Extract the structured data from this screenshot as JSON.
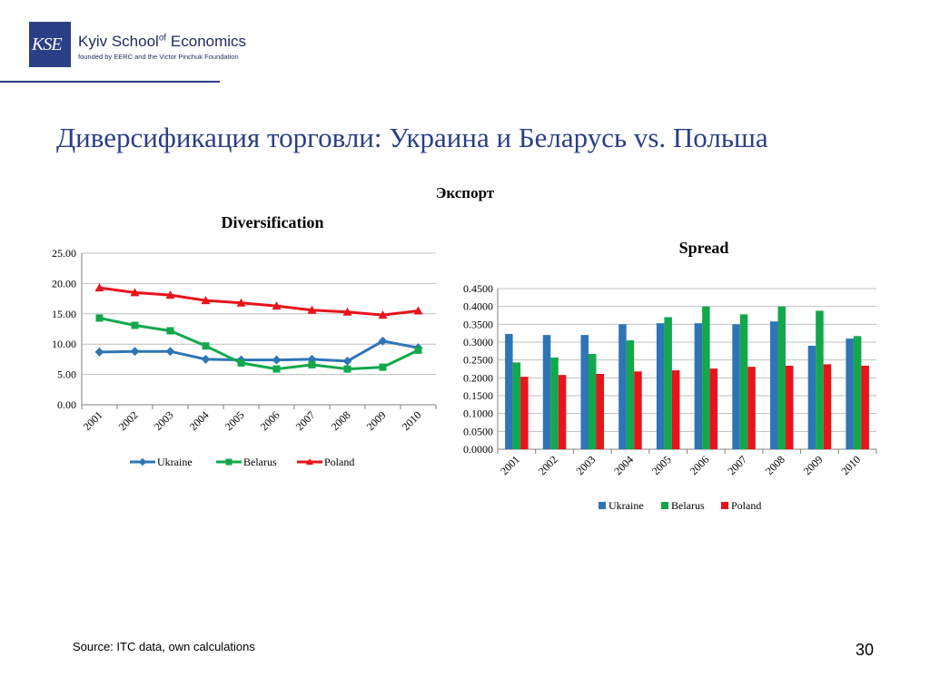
{
  "header": {
    "logo_mark": "KSE",
    "logo_name": "Kyiv School",
    "logo_name_sup": "of",
    "logo_name_end": " Economics",
    "logo_sub": "founded by EERC and the Victor Pinchuk Foundation"
  },
  "slide": {
    "title": "Диверсификация торговли: Украина и Беларусь vs. Польша",
    "subtitle": "Экспорт",
    "source": "Source: ITC data, own calculations",
    "page_number": "30"
  },
  "colors": {
    "ukraine": "#2e75b6",
    "belarus": "#12a84b",
    "poland": "#e8131b",
    "title": "#2b3f86"
  },
  "chart_data": [
    {
      "type": "line",
      "title": "Diversification",
      "categories": [
        "2001",
        "2002",
        "2003",
        "2004",
        "2005",
        "2006",
        "2007",
        "2008",
        "2009",
        "2010"
      ],
      "series": [
        {
          "name": "Ukraine",
          "values": [
            8.7,
            8.8,
            8.8,
            7.5,
            7.4,
            7.4,
            7.5,
            7.2,
            10.5,
            9.4
          ]
        },
        {
          "name": "Belarus",
          "values": [
            14.3,
            13.1,
            12.2,
            9.7,
            6.9,
            5.9,
            6.6,
            5.9,
            6.2,
            9.0
          ]
        },
        {
          "name": "Poland",
          "values": [
            19.3,
            18.5,
            18.1,
            17.2,
            16.8,
            16.3,
            15.6,
            15.3,
            14.8,
            15.5
          ]
        }
      ],
      "yticks": [
        "0.00",
        "5.00",
        "10.00",
        "15.00",
        "20.00",
        "25.00"
      ],
      "ylim": [
        0,
        25
      ],
      "grid": true,
      "legend": "bottom"
    },
    {
      "type": "bar",
      "title": "Spread",
      "categories": [
        "2001",
        "2002",
        "2003",
        "2004",
        "2005",
        "2006",
        "2007",
        "2008",
        "2009",
        "2010"
      ],
      "series": [
        {
          "name": "Ukraine",
          "values": [
            0.323,
            0.32,
            0.32,
            0.35,
            0.353,
            0.353,
            0.35,
            0.358,
            0.29,
            0.31
          ]
        },
        {
          "name": "Belarus",
          "values": [
            0.243,
            0.257,
            0.267,
            0.305,
            0.37,
            0.4,
            0.378,
            0.4,
            0.388,
            0.317
          ]
        },
        {
          "name": "Poland",
          "values": [
            0.203,
            0.208,
            0.211,
            0.218,
            0.221,
            0.226,
            0.231,
            0.234,
            0.238,
            0.234
          ]
        }
      ],
      "yticks": [
        "0.0000",
        "0.0500",
        "0.1000",
        "0.1500",
        "0.2000",
        "0.2500",
        "0.3000",
        "0.3500",
        "0.4000",
        "0.4500"
      ],
      "ylim": [
        0,
        0.45
      ],
      "grid": true,
      "legend": "bottom"
    }
  ]
}
